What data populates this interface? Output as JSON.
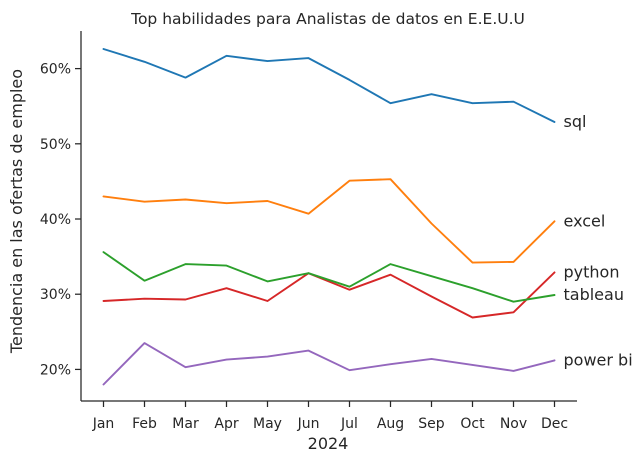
{
  "chart_data": {
    "type": "line",
    "title": "Top habilidades para Analistas de datos en E.E.U.U",
    "xlabel": "2024",
    "ylabel": "Tendencia en las ofertas de empleo",
    "categories": [
      "Jan",
      "Feb",
      "Mar",
      "Apr",
      "May",
      "Jun",
      "Jul",
      "Aug",
      "Sep",
      "Oct",
      "Nov",
      "Dec"
    ],
    "ylim": [
      15.8,
      65.0
    ],
    "yticks": [
      20,
      30,
      40,
      50,
      60
    ],
    "ytick_labels": [
      "20%",
      "30%",
      "40%",
      "50%",
      "60%"
    ],
    "grid": false,
    "legend": "inline labels at line ends",
    "series": [
      {
        "name": "sql",
        "color": "#1f77b4",
        "values": [
          62.6,
          60.9,
          58.8,
          61.7,
          61.0,
          61.4,
          58.5,
          55.4,
          56.6,
          55.4,
          55.6,
          52.9
        ]
      },
      {
        "name": "excel",
        "color": "#ff7f0e",
        "values": [
          43.0,
          42.3,
          42.6,
          42.1,
          42.4,
          40.7,
          45.1,
          45.3,
          39.4,
          34.2,
          34.3,
          39.7
        ]
      },
      {
        "name": "python",
        "color": "#d62728",
        "values": [
          29.1,
          29.4,
          29.3,
          30.8,
          29.1,
          32.8,
          30.6,
          32.6,
          29.7,
          26.9,
          27.6,
          32.9
        ]
      },
      {
        "name": "tableau",
        "color": "#2ca02c",
        "values": [
          35.6,
          31.8,
          34.0,
          33.8,
          31.7,
          32.8,
          31.0,
          34.0,
          32.4,
          30.8,
          29.0,
          29.9
        ]
      },
      {
        "name": "power bi",
        "color": "#9467bd",
        "values": [
          18.0,
          23.5,
          20.3,
          21.3,
          21.7,
          22.5,
          19.9,
          20.7,
          21.4,
          20.6,
          19.8,
          21.2
        ]
      }
    ]
  }
}
